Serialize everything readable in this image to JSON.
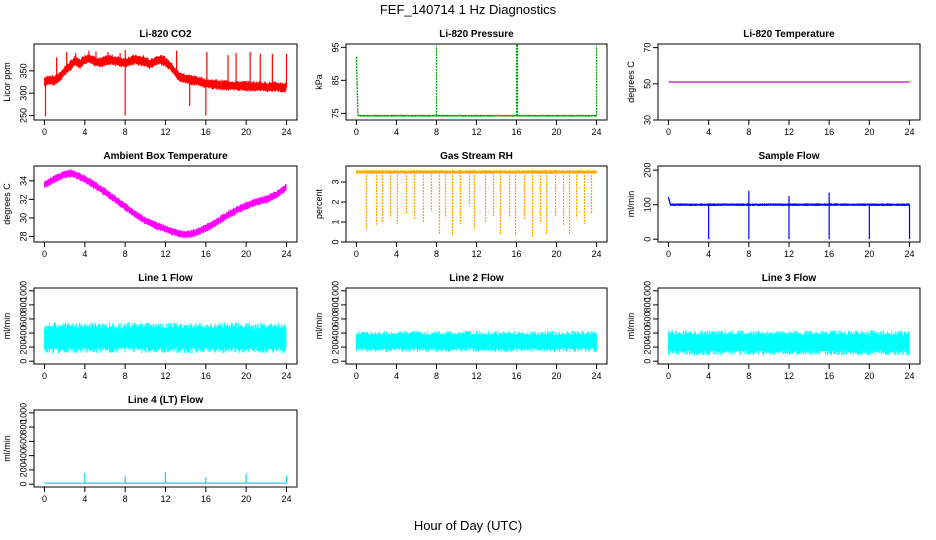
{
  "page": {
    "title": "FEF_140714  1 Hz Diagnostics",
    "xlabel": "Hour of Day (UTC)"
  },
  "chart_data": [
    {
      "type": "line",
      "title": "Li-820 CO2",
      "ylabel": "Licor ppm",
      "color": "#ff0000",
      "xlim": [
        0,
        24
      ],
      "ylim": [
        240,
        410
      ],
      "xticks": [
        0,
        4,
        8,
        12,
        16,
        20,
        24
      ],
      "yticks": [
        250,
        300,
        350
      ],
      "x": [
        0,
        0.5,
        1,
        1.5,
        2,
        2.5,
        3,
        3.5,
        4,
        4.5,
        5,
        5.5,
        6,
        6.5,
        7,
        7.5,
        8,
        8.5,
        9,
        9.5,
        10,
        10.5,
        11,
        11.5,
        12,
        12.5,
        13,
        13.5,
        14,
        14.5,
        15,
        15.5,
        16,
        16.5,
        17,
        17.5,
        18,
        18.5,
        19,
        19.5,
        20,
        20.5,
        21,
        21.5,
        22,
        22.5,
        23,
        23.5,
        24
      ],
      "y": [
        325,
        330,
        328,
        335,
        350,
        360,
        372,
        365,
        375,
        378,
        370,
        368,
        372,
        375,
        372,
        370,
        368,
        372,
        375,
        372,
        370,
        365,
        372,
        375,
        370,
        360,
        345,
        335,
        332,
        330,
        328,
        325,
        322,
        320,
        320,
        318,
        318,
        317,
        316,
        316,
        316,
        315,
        315,
        315,
        314,
        314,
        314,
        313,
        313
      ],
      "band": 12,
      "spikes": [
        [
          1.2,
          380
        ],
        [
          2.2,
          392
        ],
        [
          3.1,
          390
        ],
        [
          4.4,
          395
        ],
        [
          5.1,
          393
        ],
        [
          6.3,
          392
        ],
        [
          7.5,
          390
        ],
        [
          8.0,
          250
        ],
        [
          8.0,
          397
        ],
        [
          9.8,
          385
        ],
        [
          11.9,
          383
        ],
        [
          13.1,
          395
        ],
        [
          14.4,
          272
        ],
        [
          16.0,
          250
        ],
        [
          16.1,
          392
        ],
        [
          18.2,
          385
        ],
        [
          19.0,
          390
        ],
        [
          20.4,
          392
        ],
        [
          21.4,
          388
        ],
        [
          22.6,
          388
        ],
        [
          24.0,
          388
        ],
        [
          0.1,
          248
        ]
      ]
    },
    {
      "type": "line",
      "title": "Li-820 Pressure",
      "ylabel": "kPa",
      "color": "#00a000",
      "dashed": true,
      "xlim": [
        0,
        24
      ],
      "ylim": [
        73,
        96
      ],
      "xticks": [
        0,
        4,
        8,
        12,
        16,
        20,
        24
      ],
      "yticks": [
        75,
        85,
        95
      ],
      "x": [
        0,
        0.15,
        0.3,
        24
      ],
      "y": [
        92,
        74.5,
        74.3,
        74.3
      ],
      "band": 0.3,
      "spikes": [
        [
          8,
          95.5
        ],
        [
          16,
          95.8
        ],
        [
          16.1,
          95.8
        ],
        [
          24,
          95.5
        ]
      ]
    },
    {
      "type": "line",
      "title": "Li-820 Temperature",
      "ylabel": "degrees C",
      "color": "#cc00cc",
      "xlim": [
        0,
        24
      ],
      "ylim": [
        30,
        72
      ],
      "xticks": [
        0,
        4,
        8,
        12,
        16,
        20,
        24
      ],
      "yticks": [
        30,
        50,
        70
      ],
      "x": [
        0,
        24
      ],
      "y": [
        51,
        51
      ],
      "band": 0,
      "spikes": []
    },
    {
      "type": "line",
      "title": "Ambient Box Temperature",
      "ylabel": "degrees C",
      "color": "#ff00ff",
      "xlim": [
        0,
        24
      ],
      "ylim": [
        27.4,
        35.6
      ],
      "xticks": [
        0,
        4,
        8,
        12,
        16,
        20,
        24
      ],
      "yticks": [
        28,
        30,
        32,
        34
      ],
      "x": [
        0,
        1,
        2,
        2.5,
        3,
        4,
        5,
        6,
        7,
        8,
        9,
        10,
        11,
        12,
        13,
        14,
        15,
        16,
        17,
        18,
        19,
        20,
        21,
        22,
        23,
        24
      ],
      "y": [
        33.6,
        34.2,
        34.7,
        34.8,
        34.7,
        34.2,
        33.5,
        32.8,
        32.0,
        31.2,
        30.4,
        29.7,
        29.2,
        28.8,
        28.4,
        28.2,
        28.4,
        28.9,
        29.5,
        30.2,
        30.8,
        31.3,
        31.7,
        32.0,
        32.5,
        33.3
      ],
      "band": 0.45,
      "spikes": []
    },
    {
      "type": "line",
      "title": "Gas Stream RH",
      "ylabel": "percent",
      "color": "#ffa500",
      "dashed": true,
      "xlim": [
        0,
        24
      ],
      "ylim": [
        0,
        3.8
      ],
      "xticks": [
        0,
        4,
        8,
        12,
        16,
        20,
        24
      ],
      "yticks": [
        0,
        1,
        2,
        3
      ],
      "x": [
        0,
        24
      ],
      "y": [
        3.5,
        3.5
      ],
      "band": 0.1,
      "spikes": [
        [
          1.0,
          0.6
        ],
        [
          2.0,
          0.8
        ],
        [
          2.6,
          1.0
        ],
        [
          3.4,
          1.2
        ],
        [
          4.1,
          0.9
        ],
        [
          5.0,
          1.4
        ],
        [
          5.8,
          1.1
        ],
        [
          6.7,
          1.0
        ],
        [
          7.5,
          1.5
        ],
        [
          8.3,
          0.4
        ],
        [
          8.9,
          1.2
        ],
        [
          9.6,
          0.3
        ],
        [
          10.4,
          0.9
        ],
        [
          11.3,
          1.8
        ],
        [
          11.8,
          0.6
        ],
        [
          12.9,
          1.0
        ],
        [
          13.7,
          1.3
        ],
        [
          14.4,
          0.4
        ],
        [
          15.3,
          1.2
        ],
        [
          15.9,
          0.3
        ],
        [
          16.8,
          1.1
        ],
        [
          17.6,
          0.2
        ],
        [
          18.4,
          1.0
        ],
        [
          19.0,
          0.4
        ],
        [
          19.9,
          1.3
        ],
        [
          20.7,
          0.8
        ],
        [
          21.3,
          0.4
        ],
        [
          22.0,
          1.2
        ],
        [
          22.8,
          0.9
        ],
        [
          23.5,
          1.4
        ]
      ]
    },
    {
      "type": "line",
      "title": "Sample Flow",
      "ylabel": "ml/min",
      "color": "#0000ff",
      "xlim": [
        0,
        24
      ],
      "ylim": [
        -8,
        212
      ],
      "xticks": [
        0,
        4,
        8,
        12,
        16,
        20,
        24
      ],
      "yticks": [
        0,
        100,
        200
      ],
      "x": [
        0,
        0.2,
        24
      ],
      "y": [
        120,
        100,
        100
      ],
      "band": 4,
      "spikes": [
        [
          4,
          0
        ],
        [
          8,
          0
        ],
        [
          8,
          140
        ],
        [
          12,
          0
        ],
        [
          12,
          125
        ],
        [
          16,
          0
        ],
        [
          16,
          135
        ],
        [
          20,
          0
        ],
        [
          24,
          0
        ]
      ]
    },
    {
      "type": "line",
      "title": "Line 1 Flow",
      "ylabel": "ml/min",
      "color": "#00ffff",
      "xlim": [
        0,
        24
      ],
      "ylim": [
        -40,
        1040
      ],
      "xticks": [
        0,
        4,
        8,
        12,
        16,
        20,
        24
      ],
      "yticks": [
        0,
        200,
        400,
        600,
        800,
        1000
      ],
      "x": [
        0,
        24
      ],
      "y": [
        330,
        330
      ],
      "band": 220,
      "spikes": []
    },
    {
      "type": "line",
      "title": "Line 2 Flow",
      "ylabel": "ml/min",
      "color": "#00ffff",
      "xlim": [
        0,
        24
      ],
      "ylim": [
        -40,
        1040
      ],
      "xticks": [
        0,
        4,
        8,
        12,
        16,
        20,
        24
      ],
      "yticks": [
        0,
        200,
        400,
        600,
        800,
        1000
      ],
      "x": [
        0,
        24
      ],
      "y": [
        280,
        280
      ],
      "band": 150,
      "spikes": []
    },
    {
      "type": "line",
      "title": "Line 3 Flow",
      "ylabel": "ml/min",
      "color": "#00ffff",
      "xlim": [
        0,
        24
      ],
      "ylim": [
        -40,
        1040
      ],
      "xticks": [
        0,
        4,
        8,
        12,
        16,
        20,
        24
      ],
      "yticks": [
        0,
        200,
        400,
        600,
        800,
        1000
      ],
      "x": [
        0,
        24
      ],
      "y": [
        260,
        260
      ],
      "band": 180,
      "spikes": []
    },
    {
      "type": "line",
      "title": "Line 4 (LT) Flow",
      "ylabel": "ml/min",
      "color": "#00e0e0",
      "xlim": [
        0,
        24
      ],
      "ylim": [
        -40,
        1040
      ],
      "xticks": [
        0,
        4,
        8,
        12,
        16,
        20,
        24
      ],
      "yticks": [
        0,
        200,
        400,
        600,
        800,
        1000
      ],
      "x": [
        0,
        24
      ],
      "y": [
        15,
        15
      ],
      "band": 5,
      "spikes": [
        [
          4,
          160
        ],
        [
          8,
          110
        ],
        [
          12,
          170
        ],
        [
          16,
          100
        ],
        [
          20,
          150
        ],
        [
          24,
          120
        ]
      ]
    }
  ]
}
